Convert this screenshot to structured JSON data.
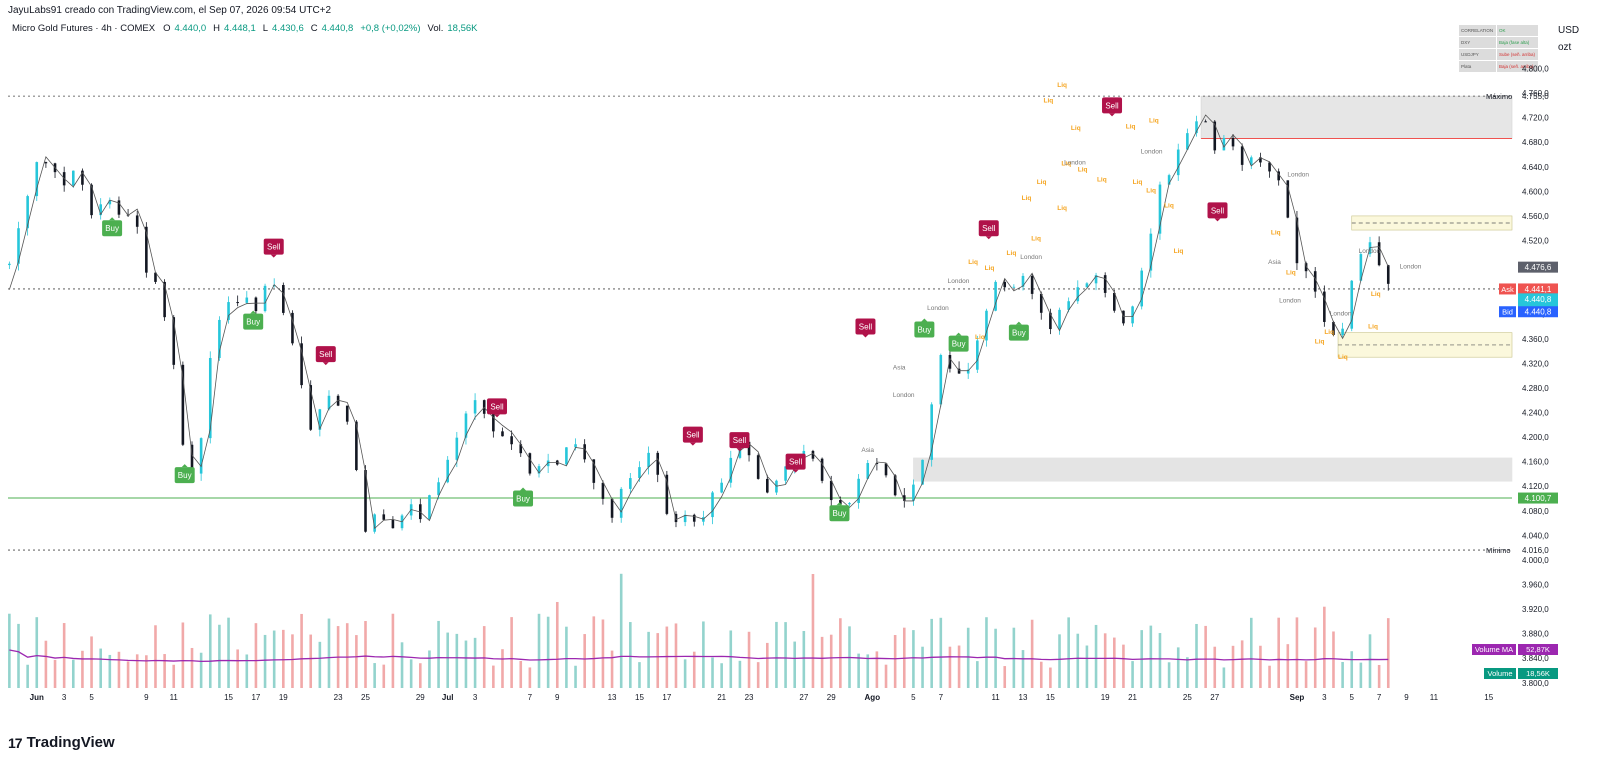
{
  "header": {
    "attribution": "JayuLabs91 creado con TradingView.com, el Sep 07, 2026 09:54 UTC+2",
    "symbol": "Micro Gold Futures · 4h · COMEX",
    "open_label": "O",
    "open": "4.440,0",
    "high_label": "H",
    "high": "4.448,1",
    "low_label": "L",
    "low": "4.430,6",
    "close_label": "C",
    "close": "4.440,8",
    "change": "+0,8 (+0,02%)",
    "vol_label": "Vol.",
    "vol": "18,56K"
  },
  "axis": {
    "currency": "USD",
    "unit": "ozt"
  },
  "footer": {
    "brand": "TradingView",
    "brand_mark": "17"
  },
  "table": [
    [
      "CORRELATION",
      "OK"
    ],
    [
      "DXY",
      "Baja (fase alta)"
    ],
    [
      "USDJPY",
      "Sube (señ. arriba)"
    ],
    [
      "Plata",
      "Baja (señ. arriba)"
    ]
  ],
  "colors": {
    "bull": "#26c6da",
    "bear": "#131722",
    "buy": "#4caf50",
    "sell": "#b0124a",
    "liq": "#f5a623",
    "vol_up": "#80cbc4",
    "vol_down": "#ef9a9a",
    "vol_ma": "#9c27b0"
  },
  "chart_data": {
    "type": "candlestick",
    "title": "Micro Gold Futures · 4h · COMEX",
    "y_ticks": [
      3800,
      3840,
      3880,
      3920,
      3960,
      4000,
      4040,
      4080,
      4120,
      4160,
      4200,
      4240,
      4280,
      4320,
      4360,
      4400,
      4440,
      4480,
      4520,
      4560,
      4600,
      4640,
      4680,
      4720,
      4760,
      4800
    ],
    "y_tick_labels": [
      "3.800,0",
      "3.840,0",
      "3.880,0",
      "3.920,0",
      "3.960,0",
      "4.000,0",
      "4.040,0",
      "4.080,0",
      "4.120,0",
      "4.160,0",
      "4.200,0",
      "4.240,0",
      "4.280,0",
      "4.320,0",
      "4.360,0",
      "4.400,0",
      "4.440,0",
      "4.480,0",
      "4.520,0",
      "4.560,0",
      "4.600,0",
      "4.640,0",
      "4.680,0",
      "4.720,0",
      "4.760,0",
      "4.800,0"
    ],
    "x_labels": [
      "Jun",
      "3",
      "5",
      "9",
      "11",
      "15",
      "17",
      "19",
      "23",
      "25",
      "29",
      "Jul",
      "3",
      "7",
      "9",
      "13",
      "15",
      "17",
      "21",
      "23",
      "27",
      "29",
      "Ago",
      "5",
      "7",
      "11",
      "13",
      "15",
      "19",
      "21",
      "25",
      "27",
      "Sep",
      "3",
      "5",
      "7",
      "9",
      "11",
      "15"
    ],
    "x_days": [
      1,
      3,
      5,
      9,
      11,
      15,
      17,
      19,
      23,
      25,
      29,
      31,
      33,
      37,
      39,
      43,
      45,
      47,
      51,
      53,
      57,
      59,
      62,
      65,
      67,
      71,
      73,
      75,
      79,
      81,
      85,
      87,
      93,
      95,
      97,
      99,
      101,
      103,
      107
    ],
    "x_domain_days": [
      -1.1,
      108.7
    ],
    "price_path": [
      [
        -1,
        4480
      ],
      [
        1,
        4658
      ],
      [
        3,
        4605
      ],
      [
        4,
        4640
      ],
      [
        5,
        4560
      ],
      [
        6,
        4595
      ],
      [
        7,
        4560
      ],
      [
        8,
        4575
      ],
      [
        9,
        4470
      ],
      [
        10,
        4440
      ],
      [
        11,
        4310
      ],
      [
        12,
        4120
      ],
      [
        13,
        4200
      ],
      [
        14,
        4390
      ],
      [
        15,
        4410
      ],
      [
        16,
        4420
      ],
      [
        17,
        4415
      ],
      [
        18,
        4460
      ],
      [
        19,
        4395
      ],
      [
        20,
        4320
      ],
      [
        21,
        4210
      ],
      [
        22,
        4260
      ],
      [
        23,
        4260
      ],
      [
        24,
        4205
      ],
      [
        25,
        4050
      ],
      [
        26,
        4070
      ],
      [
        27,
        4060
      ],
      [
        28,
        4090
      ],
      [
        29,
        4060
      ],
      [
        30,
        4120
      ],
      [
        31,
        4155
      ],
      [
        32,
        4220
      ],
      [
        33,
        4250
      ],
      [
        34,
        4225
      ],
      [
        35,
        4210
      ],
      [
        36,
        4180
      ],
      [
        37,
        4140
      ],
      [
        38,
        4165
      ],
      [
        39,
        4150
      ],
      [
        40,
        4195
      ],
      [
        41,
        4160
      ],
      [
        42,
        4115
      ],
      [
        43,
        4075
      ],
      [
        44,
        4120
      ],
      [
        45,
        4150
      ],
      [
        46,
        4170
      ],
      [
        47,
        4065
      ],
      [
        48,
        4075
      ],
      [
        49,
        4065
      ],
      [
        50,
        4085
      ],
      [
        51,
        4130
      ],
      [
        52,
        4195
      ],
      [
        53,
        4180
      ],
      [
        54,
        4120
      ],
      [
        55,
        4120
      ],
      [
        56,
        4160
      ],
      [
        57,
        4175
      ],
      [
        58,
        4150
      ],
      [
        59,
        4100
      ],
      [
        60,
        4080
      ],
      [
        61,
        4130
      ],
      [
        62,
        4170
      ],
      [
        63,
        4140
      ],
      [
        64,
        4080
      ],
      [
        65,
        4120
      ],
      [
        66,
        4200
      ],
      [
        67,
        4330
      ],
      [
        68,
        4300
      ],
      [
        69,
        4320
      ],
      [
        70,
        4390
      ],
      [
        71,
        4460
      ],
      [
        72,
        4430
      ],
      [
        73,
        4470
      ],
      [
        74,
        4420
      ],
      [
        75,
        4370
      ],
      [
        76,
        4420
      ],
      [
        77,
        4440
      ],
      [
        78,
        4470
      ],
      [
        79,
        4440
      ],
      [
        80,
        4380
      ],
      [
        81,
        4420
      ],
      [
        82,
        4500
      ],
      [
        83,
        4610
      ],
      [
        84,
        4650
      ],
      [
        85,
        4695
      ],
      [
        86,
        4735
      ],
      [
        87,
        4670
      ],
      [
        88,
        4700
      ],
      [
        89,
        4640
      ],
      [
        90,
        4660
      ],
      [
        91,
        4630
      ],
      [
        92,
        4600
      ],
      [
        93,
        4480
      ],
      [
        94,
        4450
      ],
      [
        95,
        4390
      ],
      [
        96,
        4350
      ],
      [
        97,
        4450
      ],
      [
        98,
        4530
      ],
      [
        99,
        4480
      ],
      [
        100,
        4440
      ]
    ],
    "ohlc_last": {
      "open": 4440.0,
      "high": 4448.1,
      "low": 4430.6,
      "close": 4440.8
    },
    "change": "+0,8 (+0,02%)",
    "volume": "18,56K",
    "levels": [
      {
        "label": "Máximo",
        "value": 4755.0,
        "text": "4.755,0",
        "style": "dotted"
      },
      {
        "label": "Mínimo",
        "value": 4016.0,
        "text": "4.016,0",
        "style": "dotted"
      },
      {
        "label": "",
        "value": 4441.1,
        "text": "",
        "style": "dotted"
      },
      {
        "label": "",
        "value": 4100.7,
        "text": "4.100,7",
        "style": "solid-green"
      },
      {
        "label": "",
        "value": 4686.0,
        "text": "",
        "style": "solid-red"
      }
    ],
    "price_tags": [
      {
        "label": "",
        "value": 4476.6,
        "text": "4.476,6",
        "color": "#5d606b"
      },
      {
        "label": "Ask",
        "value": 4441.1,
        "text": "4.441,1",
        "color": "#ef5350"
      },
      {
        "label": "",
        "value": 4425.0,
        "text": "4.440,8",
        "sub": "02:15:23",
        "color": "#26c6da"
      },
      {
        "label": "Bid",
        "value": 4404.0,
        "text": "4.440,8",
        "color": "#2962ff"
      },
      {
        "label": "",
        "value": 4100.7,
        "text": "4.100,7",
        "color": "#4caf50"
      }
    ],
    "zones": [
      {
        "d0": 86,
        "d1": 110,
        "low": 4686,
        "high": 4755,
        "kind": "supply"
      },
      {
        "d0": 97,
        "d1": 110,
        "low": 4537,
        "high": 4560,
        "kind": "yellow"
      },
      {
        "d0": 96,
        "d1": 110,
        "low": 4330,
        "high": 4370,
        "kind": "yellow"
      },
      {
        "d0": 65,
        "d1": 110,
        "low": 4128,
        "high": 4166,
        "kind": "grey"
      }
    ],
    "signals": [
      {
        "type": "Buy",
        "day": 6.5,
        "value": 4540
      },
      {
        "type": "Sell",
        "day": 18.3,
        "value": 4510
      },
      {
        "type": "Buy",
        "day": 16.8,
        "value": 4388
      },
      {
        "type": "Sell",
        "day": 22.1,
        "value": 4335
      },
      {
        "type": "Buy",
        "day": 11.8,
        "value": 4138
      },
      {
        "type": "Sell",
        "day": 34.6,
        "value": 4250
      },
      {
        "type": "Buy",
        "day": 36.5,
        "value": 4100
      },
      {
        "type": "Sell",
        "day": 48.9,
        "value": 4204
      },
      {
        "type": "Sell",
        "day": 52.3,
        "value": 4195
      },
      {
        "type": "Sell",
        "day": 56.4,
        "value": 4160
      },
      {
        "type": "Buy",
        "day": 59.6,
        "value": 4076
      },
      {
        "type": "Sell",
        "day": 61.5,
        "value": 4380
      },
      {
        "type": "Buy",
        "day": 65.8,
        "value": 4375
      },
      {
        "type": "Buy",
        "day": 68.3,
        "value": 4352
      },
      {
        "type": "Sell",
        "day": 70.5,
        "value": 4540
      },
      {
        "type": "Buy",
        "day": 72.7,
        "value": 4370
      },
      {
        "type": "Sell",
        "day": 79.5,
        "value": 4740
      },
      {
        "type": "Sell",
        "day": 87.2,
        "value": 4569
      }
    ],
    "annotations": [
      {
        "text": "Liq",
        "day": 75.5,
        "value": 4770
      },
      {
        "text": "Liq",
        "day": 74.5,
        "value": 4745
      },
      {
        "text": "Liq",
        "day": 76.5,
        "value": 4700
      },
      {
        "text": "Liq",
        "day": 75.8,
        "value": 4642
      },
      {
        "text": "Liq",
        "day": 74.0,
        "value": 4612
      },
      {
        "text": "Liq",
        "day": 77.0,
        "value": 4632
      },
      {
        "text": "Liq",
        "day": 78.4,
        "value": 4616
      },
      {
        "text": "Liq",
        "day": 80.5,
        "value": 4702
      },
      {
        "text": "Liq",
        "day": 81.0,
        "value": 4612
      },
      {
        "text": "Liq",
        "day": 82.2,
        "value": 4712
      },
      {
        "text": "Liq",
        "day": 73.6,
        "value": 4520
      },
      {
        "text": "Liq",
        "day": 71.8,
        "value": 4496
      },
      {
        "text": "Liq",
        "day": 70.2,
        "value": 4472
      },
      {
        "text": "Liq",
        "day": 72.9,
        "value": 4586
      },
      {
        "text": "Liq",
        "day": 69.0,
        "value": 4482
      },
      {
        "text": "Liq",
        "day": 69.5,
        "value": 4360
      },
      {
        "text": "Liq",
        "day": 72.5,
        "value": 4362
      },
      {
        "text": "Liq",
        "day": 75.5,
        "value": 4570
      },
      {
        "text": "Liq",
        "day": 83.3,
        "value": 4574
      },
      {
        "text": "Liq",
        "day": 82.0,
        "value": 4598
      },
      {
        "text": "Liq",
        "day": 84.0,
        "value": 4500
      },
      {
        "text": "Liq",
        "day": 91.1,
        "value": 4530
      },
      {
        "text": "Liq",
        "day": 92.2,
        "value": 4465
      },
      {
        "text": "Liq",
        "day": 94.3,
        "value": 4352
      },
      {
        "text": "Liq",
        "day": 96.0,
        "value": 4327
      },
      {
        "text": "Liq",
        "day": 95.0,
        "value": 4368
      },
      {
        "text": "Liq",
        "day": 98.2,
        "value": 4377
      },
      {
        "text": "Liq",
        "day": 98.4,
        "value": 4430
      },
      {
        "text": "London",
        "day": 76.0,
        "value": 4644
      },
      {
        "text": "London",
        "day": 72.8,
        "value": 4490
      },
      {
        "text": "London",
        "day": 81.6,
        "value": 4662
      },
      {
        "text": "London",
        "day": 67.5,
        "value": 4451
      },
      {
        "text": "London",
        "day": 66.0,
        "value": 4407
      },
      {
        "text": "London",
        "day": 63.5,
        "value": 4265
      },
      {
        "text": "Asia",
        "day": 63.5,
        "value": 4310
      },
      {
        "text": "Asia",
        "day": 61.2,
        "value": 4176
      },
      {
        "text": "London",
        "day": 91.7,
        "value": 4419
      },
      {
        "text": "London",
        "day": 92.3,
        "value": 4624
      },
      {
        "text": "Asia",
        "day": 90.9,
        "value": 4482
      },
      {
        "text": "London",
        "day": 97.5,
        "value": 4500
      },
      {
        "text": "London",
        "day": 100.5,
        "value": 4474
      },
      {
        "text": "London",
        "day": 95.4,
        "value": 4398
      }
    ],
    "volume_panel": {
      "label": "Volume MA",
      "ma_text": "52,87K",
      "vol_label": "Volume",
      "vol_text": "18,56K"
    }
  }
}
